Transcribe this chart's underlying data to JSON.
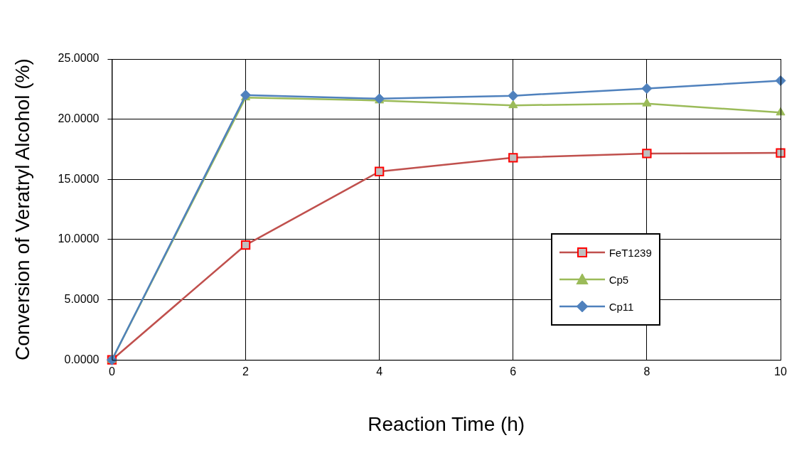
{
  "chart_data": {
    "type": "line",
    "xlabel": "Reaction Time (h)",
    "ylabel": "Conversion of Veratryl Alcohol (%)",
    "x": [
      0,
      2,
      4,
      6,
      8,
      10
    ],
    "series": [
      {
        "name": "FeT1239",
        "color": "#c0504d",
        "marker": "square",
        "values": [
          0,
          9.55,
          15.65,
          16.8,
          17.15,
          17.2
        ]
      },
      {
        "name": "Cp5",
        "color": "#9bbb59",
        "marker": "triangle",
        "values": [
          0,
          21.8,
          21.55,
          21.15,
          21.3,
          20.55
        ]
      },
      {
        "name": "Cp11",
        "color": "#4f81bd",
        "marker": "diamond",
        "values": [
          0,
          22.0,
          21.7,
          21.95,
          22.55,
          23.2
        ]
      }
    ],
    "xlim": [
      0,
      10
    ],
    "xticks": [
      0,
      2,
      4,
      6,
      8,
      10
    ],
    "ylim": [
      0,
      25
    ],
    "yticks": [
      {
        "value": 0,
        "label": "0.0000"
      },
      {
        "value": 5,
        "label": "5.0000"
      },
      {
        "value": 10,
        "label": "10.0000"
      },
      {
        "value": 15,
        "label": "15.0000"
      },
      {
        "value": 20,
        "label": "20.0000"
      },
      {
        "value": 25,
        "label": "25.0000"
      }
    ],
    "grid": true,
    "legend": "right",
    "line_style": "solid"
  }
}
